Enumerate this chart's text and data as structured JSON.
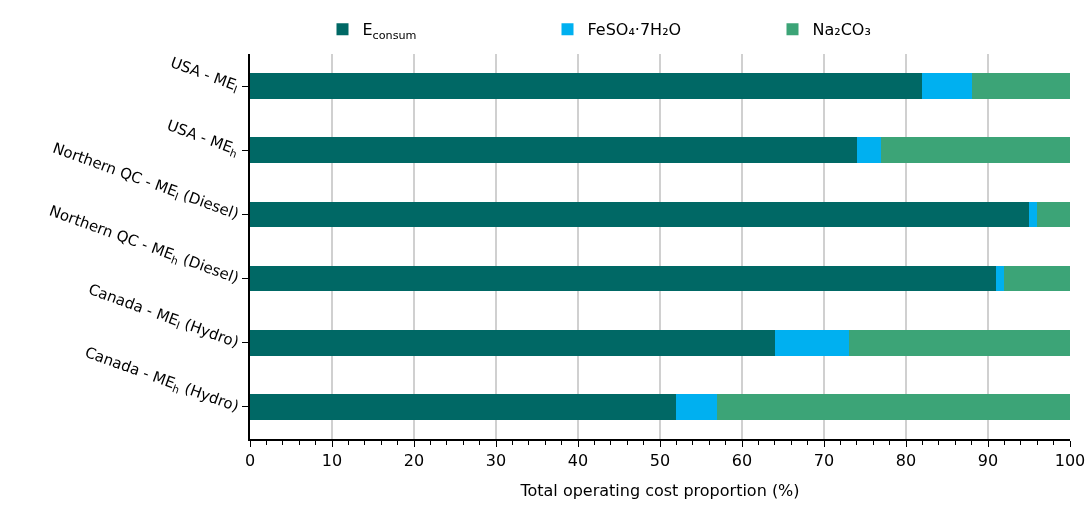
{
  "chart_data": {
    "type": "bar",
    "orientation": "horizontal",
    "stacked": true,
    "xlabel": "Total operating cost proportion (%)",
    "categories": [
      "USA - ME$_{l}$",
      "USA - ME$_{h}$",
      "Northern QC - ME$_{l}$ (Diesel)",
      "Northern QC - ME$_{h}$ (Diesel)",
      "Canada - ME$_{l}$ (Hydro)",
      "Canada - ME$_{h}$ (Hydro)"
    ],
    "series": [
      {
        "name": "E$_{consum}$",
        "color": "#006865",
        "values": [
          82,
          74,
          95,
          91,
          64,
          52
        ]
      },
      {
        "name": "FeSO₄·7H₂O",
        "color": "#00b0f0",
        "values": [
          6,
          3,
          1,
          1,
          9,
          5
        ]
      },
      {
        "name": "Na₂CO₃",
        "color": "#3ca477",
        "values": [
          12,
          23,
          4,
          8,
          27,
          43
        ]
      }
    ],
    "xlim": [
      0,
      100
    ],
    "xticks": [
      0,
      10,
      20,
      30,
      40,
      50,
      60,
      70,
      80,
      90,
      100
    ],
    "grid": "x",
    "legend": "top"
  }
}
